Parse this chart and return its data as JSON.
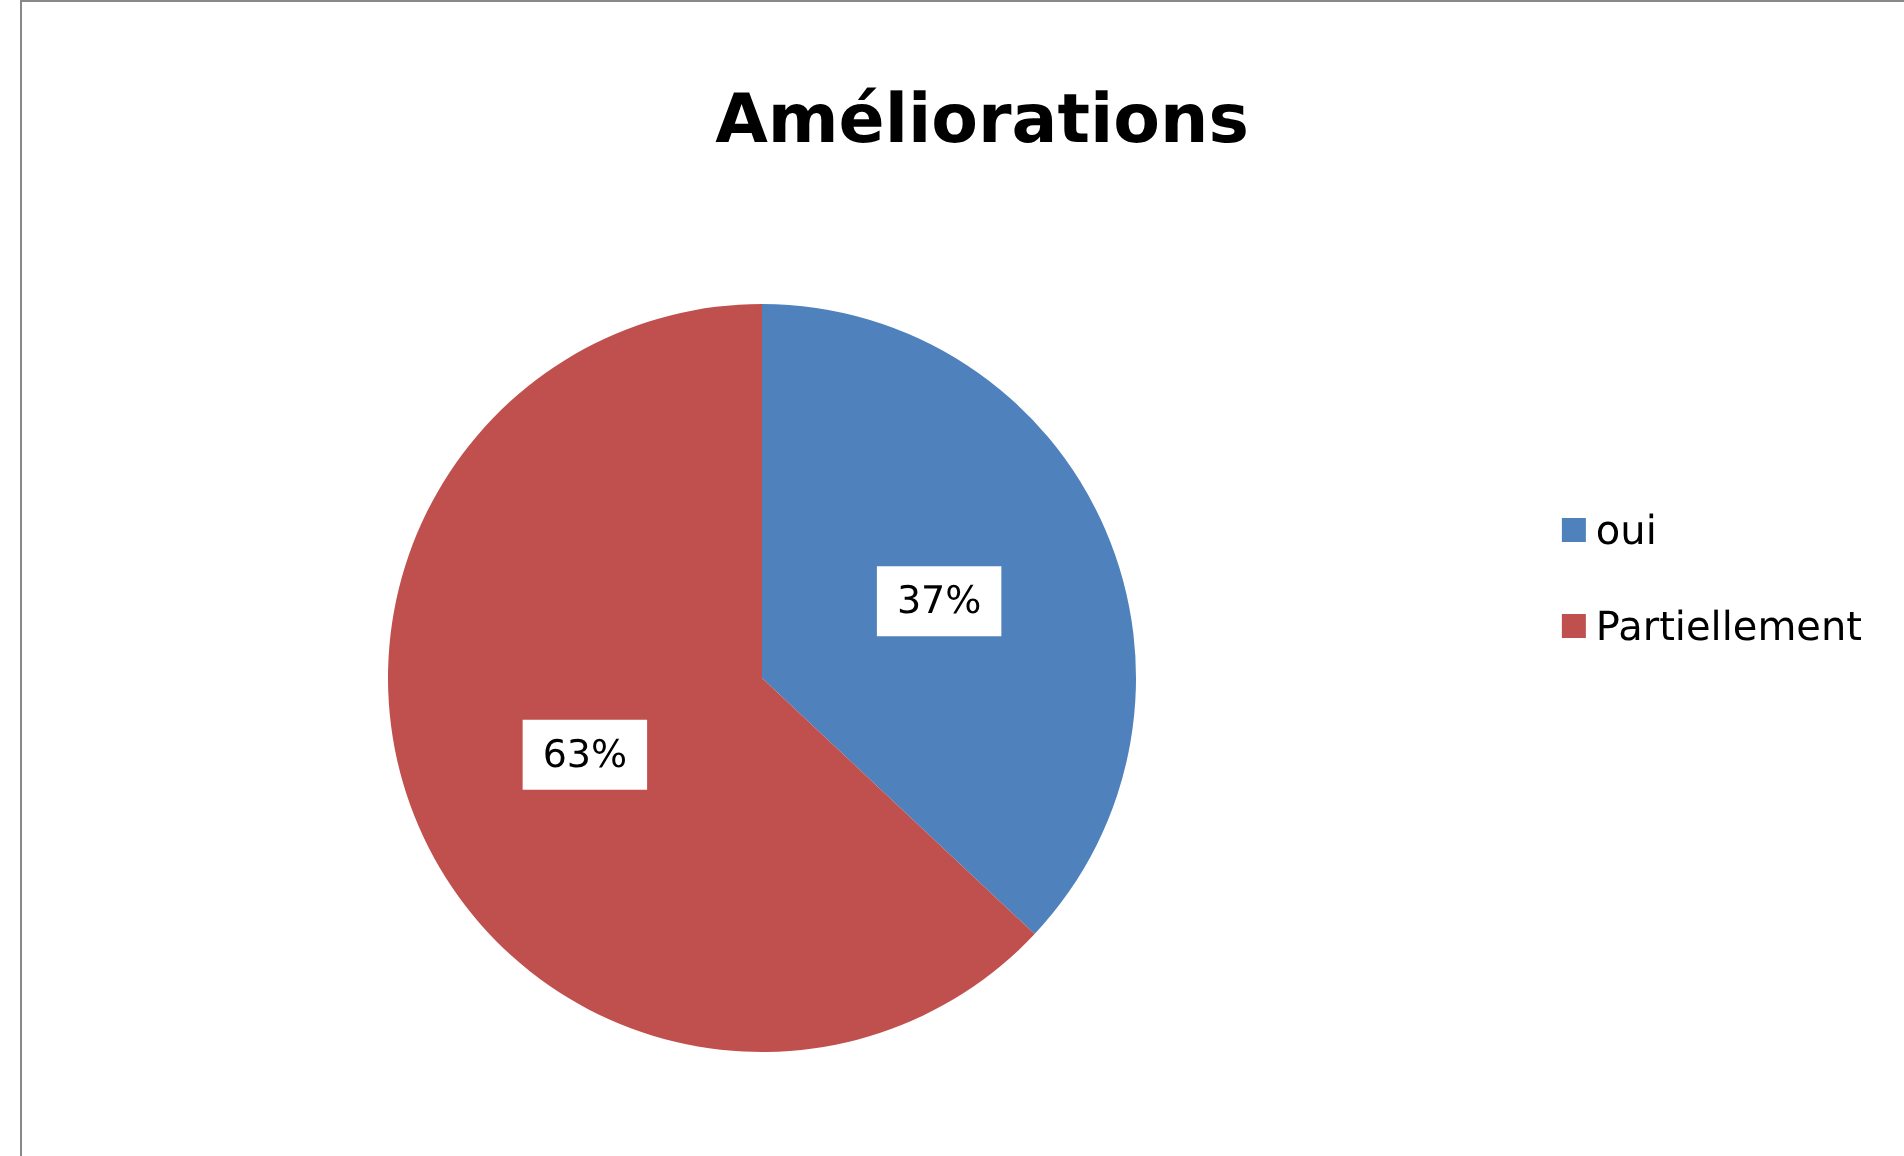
{
  "chart_data": {
    "type": "pie",
    "title": "Améliorations",
    "categories": [
      "oui",
      "Partiellement"
    ],
    "values": [
      37,
      63
    ],
    "colors": [
      "#4f81bd",
      "#c0504d"
    ],
    "value_labels": [
      "37%",
      "63%"
    ],
    "legend": "right"
  }
}
